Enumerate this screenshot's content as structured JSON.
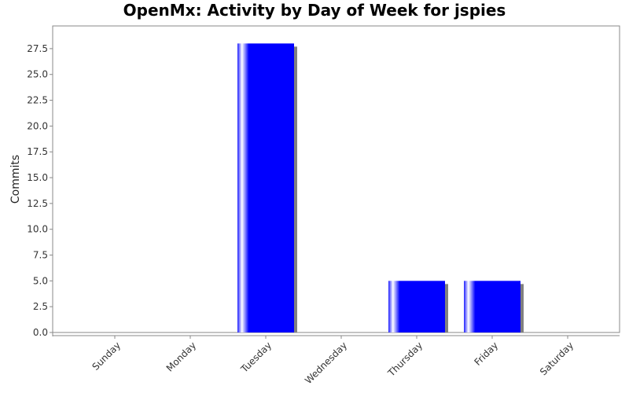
{
  "chart_data": {
    "type": "bar",
    "title": "OpenMx: Activity by Day of Week for jspies",
    "xlabel": "",
    "ylabel": "Commits",
    "categories": [
      "Sunday",
      "Monday",
      "Tuesday",
      "Wednesday",
      "Thursday",
      "Friday",
      "Saturday"
    ],
    "values": [
      0,
      0,
      28,
      0,
      5,
      5,
      0
    ],
    "yticks": [
      "0.0",
      "2.5",
      "5.0",
      "7.5",
      "10.0",
      "12.5",
      "15.0",
      "17.5",
      "20.0",
      "22.5",
      "25.0",
      "27.5"
    ],
    "ylim": [
      0,
      29.7
    ],
    "grid": false,
    "legend": "none",
    "bar_color": "#0000ff",
    "shadow_color": "#808080"
  }
}
